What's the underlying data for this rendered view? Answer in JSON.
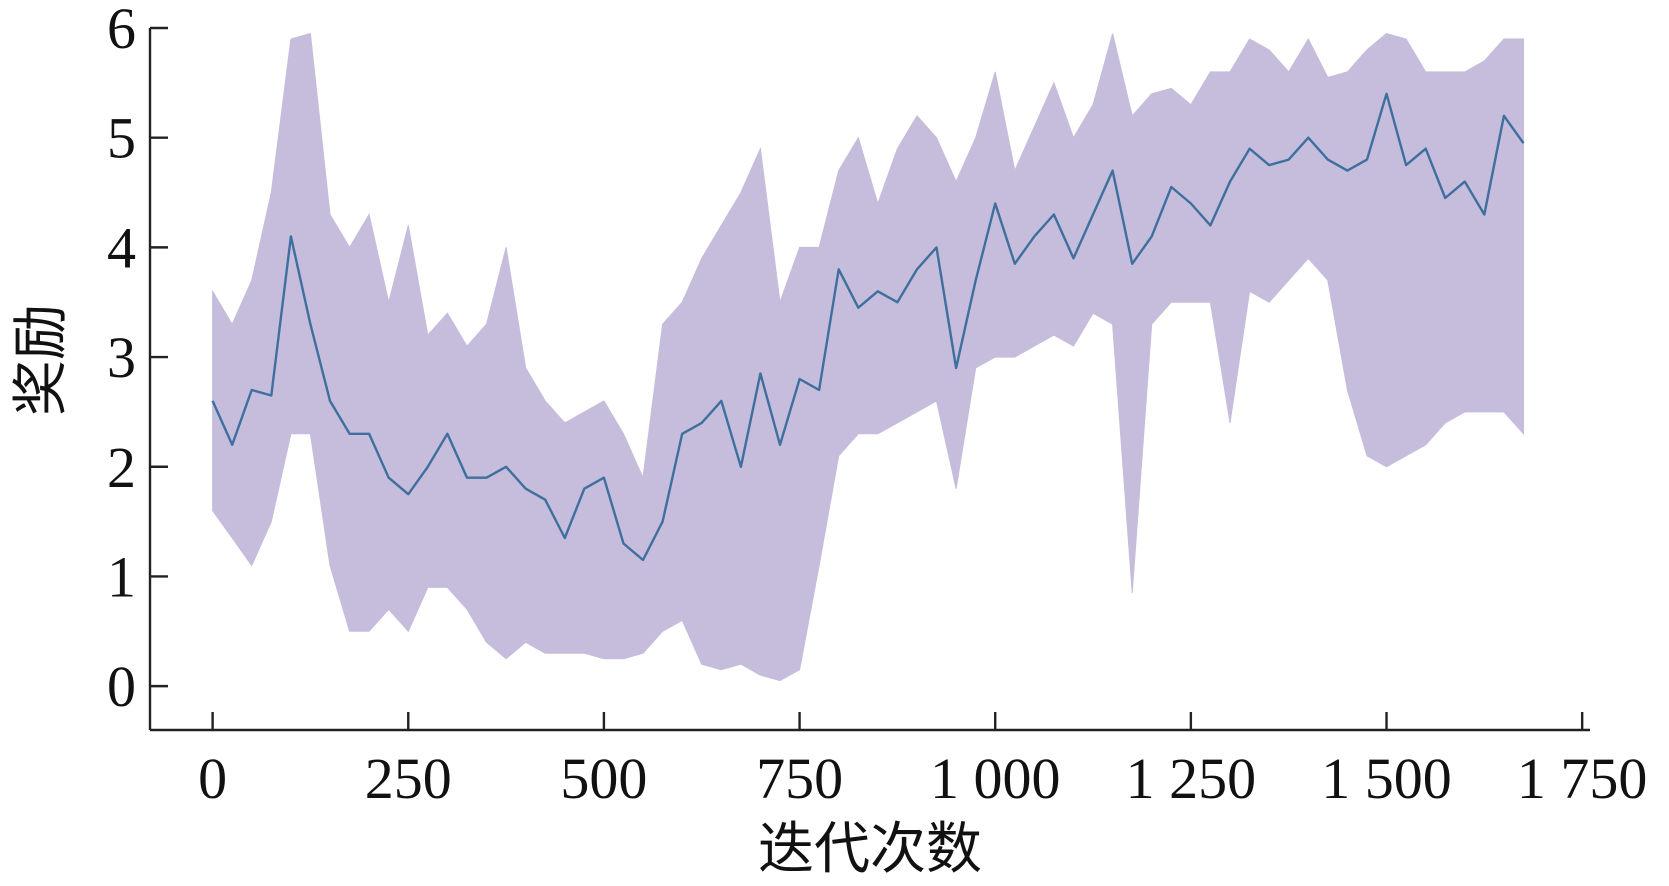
{
  "chart_data": {
    "type": "line",
    "title": "",
    "xlabel": "迭代次数",
    "ylabel": "奖励",
    "xlim": [
      -80,
      1760
    ],
    "ylim": [
      -0.4,
      6
    ],
    "x_ticks": [
      0,
      250,
      500,
      750,
      1000,
      1250,
      1500,
      1750
    ],
    "x_tick_labels": [
      "0",
      "250",
      "500",
      "750",
      "1 000",
      "1 250",
      "1 500",
      "1 750"
    ],
    "y_ticks": [
      0,
      1,
      2,
      3,
      4,
      5,
      6
    ],
    "y_tick_labels": [
      "0",
      "1",
      "2",
      "3",
      "4",
      "5",
      "6"
    ],
    "grid": false,
    "legend": "none",
    "series": [
      {
        "kind": "line",
        "color": "#3f6f9f",
        "x": [
          0,
          25,
          50,
          75,
          100,
          125,
          150,
          175,
          200,
          225,
          250,
          275,
          300,
          325,
          350,
          375,
          400,
          425,
          450,
          475,
          500,
          525,
          550,
          575,
          600,
          625,
          650,
          675,
          700,
          725,
          750,
          775,
          800,
          825,
          850,
          875,
          900,
          925,
          950,
          975,
          1000,
          1025,
          1050,
          1075,
          1100,
          1125,
          1150,
          1175,
          1200,
          1225,
          1250,
          1275,
          1300,
          1325,
          1350,
          1375,
          1400,
          1425,
          1450,
          1475,
          1500,
          1525,
          1550,
          1575,
          1600,
          1625,
          1650,
          1675
        ],
        "values": [
          2.6,
          2.2,
          2.7,
          2.65,
          4.1,
          3.3,
          2.6,
          2.3,
          2.3,
          1.9,
          1.75,
          2.0,
          2.3,
          1.9,
          1.9,
          2.0,
          1.8,
          1.7,
          1.35,
          1.8,
          1.9,
          1.3,
          1.15,
          1.5,
          2.3,
          2.4,
          2.6,
          2.0,
          2.85,
          2.2,
          2.8,
          2.7,
          3.8,
          3.45,
          3.6,
          3.5,
          3.8,
          4.0,
          2.9,
          3.7,
          4.4,
          3.85,
          4.1,
          4.3,
          3.9,
          4.3,
          4.7,
          3.85,
          4.1,
          4.55,
          4.4,
          4.2,
          4.6,
          4.9,
          4.75,
          4.8,
          5.0,
          4.8,
          4.7,
          4.8,
          5.4,
          4.75,
          4.9,
          4.45,
          4.6,
          4.3,
          5.2,
          4.95
        ]
      },
      {
        "kind": "band",
        "color": "#c5bddb",
        "x": [
          0,
          25,
          50,
          75,
          100,
          125,
          150,
          175,
          200,
          225,
          250,
          275,
          300,
          325,
          350,
          375,
          400,
          425,
          450,
          475,
          500,
          525,
          550,
          575,
          600,
          625,
          650,
          675,
          700,
          725,
          750,
          775,
          800,
          825,
          850,
          875,
          900,
          925,
          950,
          975,
          1000,
          1025,
          1050,
          1075,
          1100,
          1125,
          1150,
          1175,
          1200,
          1225,
          1250,
          1275,
          1300,
          1325,
          1350,
          1375,
          1400,
          1425,
          1450,
          1475,
          1500,
          1525,
          1550,
          1575,
          1600,
          1625,
          1650,
          1675
        ],
        "upper": [
          3.6,
          3.3,
          3.7,
          4.5,
          5.9,
          5.95,
          4.3,
          4.0,
          4.3,
          3.5,
          4.2,
          3.2,
          3.4,
          3.1,
          3.3,
          4.0,
          2.9,
          2.6,
          2.4,
          2.5,
          2.6,
          2.3,
          1.9,
          3.3,
          3.5,
          3.9,
          4.2,
          4.5,
          4.9,
          3.5,
          4.0,
          4.0,
          4.7,
          5.0,
          4.4,
          4.9,
          5.2,
          5.0,
          4.6,
          5.0,
          5.6,
          4.7,
          5.1,
          5.5,
          5.0,
          5.3,
          5.95,
          5.2,
          5.4,
          5.45,
          5.3,
          5.6,
          5.6,
          5.9,
          5.8,
          5.6,
          5.9,
          5.55,
          5.6,
          5.8,
          5.95,
          5.9,
          5.6,
          5.6,
          5.6,
          5.7,
          5.9,
          5.9
        ],
        "lower": [
          1.6,
          1.35,
          1.1,
          1.5,
          2.3,
          2.3,
          1.1,
          0.5,
          0.5,
          0.7,
          0.5,
          0.9,
          0.9,
          0.7,
          0.4,
          0.25,
          0.4,
          0.3,
          0.3,
          0.3,
          0.25,
          0.25,
          0.3,
          0.5,
          0.6,
          0.2,
          0.15,
          0.2,
          0.1,
          0.05,
          0.15,
          1.1,
          2.1,
          2.3,
          2.3,
          2.4,
          2.5,
          2.6,
          1.8,
          2.9,
          3.0,
          3.0,
          3.1,
          3.2,
          3.1,
          3.4,
          3.3,
          0.85,
          3.3,
          3.5,
          3.5,
          3.5,
          2.4,
          3.6,
          3.5,
          3.7,
          3.9,
          3.7,
          2.7,
          2.1,
          2.0,
          2.1,
          2.2,
          2.4,
          2.5,
          2.5,
          2.5,
          2.3
        ]
      }
    ]
  }
}
